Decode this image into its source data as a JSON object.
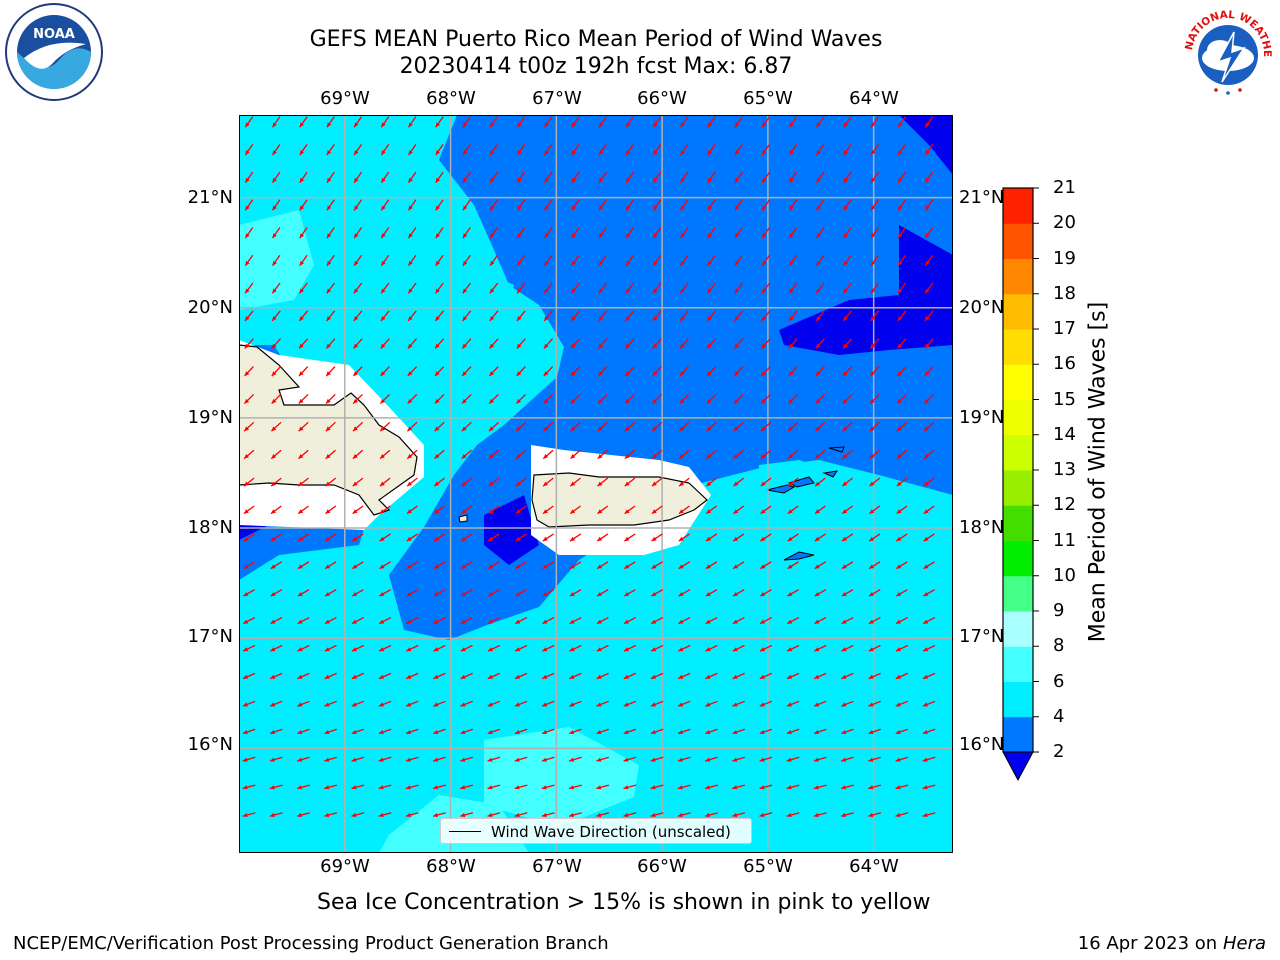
{
  "title": {
    "line1": "GEFS MEAN Puerto Rico Mean Period of Wind Waves",
    "line2": "20230414 t00z 192h fcst   Max: 6.87"
  },
  "map": {
    "lon_ticks": [
      "69°W",
      "68°W",
      "67°W",
      "66°W",
      "65°W",
      "64°W"
    ],
    "lat_ticks": [
      "21°N",
      "20°N",
      "19°N",
      "18°N",
      "17°N",
      "16°N"
    ],
    "lon_range": [
      -70.0,
      -63.25
    ],
    "lat_range": [
      15.05,
      21.75
    ],
    "legend_label": "Wind Wave Direction (unscaled)",
    "arrow_color": "#ff0000",
    "land_color": "#efefdc",
    "grid_color": "#b0b0b0"
  },
  "colorbar": {
    "title": "Mean Period of Wind Waves [s]",
    "levels": [
      "2",
      "4",
      "6",
      "8",
      "9",
      "10",
      "11",
      "12",
      "13",
      "14",
      "15",
      "16",
      "17",
      "18",
      "19",
      "20",
      "21"
    ],
    "colors": [
      "#0077ff",
      "#00eeff",
      "#44ffff",
      "#aaffff",
      "#44ff88",
      "#00ee00",
      "#44dd00",
      "#99ee00",
      "#ccff00",
      "#eeff00",
      "#ffff00",
      "#ffdd00",
      "#ffbb00",
      "#ff8800",
      "#ff5500",
      "#ff2200"
    ],
    "under_color": "#0000ee"
  },
  "notes": {
    "sea_ice": "Sea Ice Concentration > 15% is shown in pink to yellow",
    "footer_left": "NCEP/EMC/Verification Post Processing Product Generation Branch",
    "footer_date": "16 Apr 2023 on ",
    "footer_machine": "Hera"
  },
  "logos": {
    "noaa_text": "NOAA",
    "nws_text": "NATIONAL WEATHER SERVICE"
  }
}
